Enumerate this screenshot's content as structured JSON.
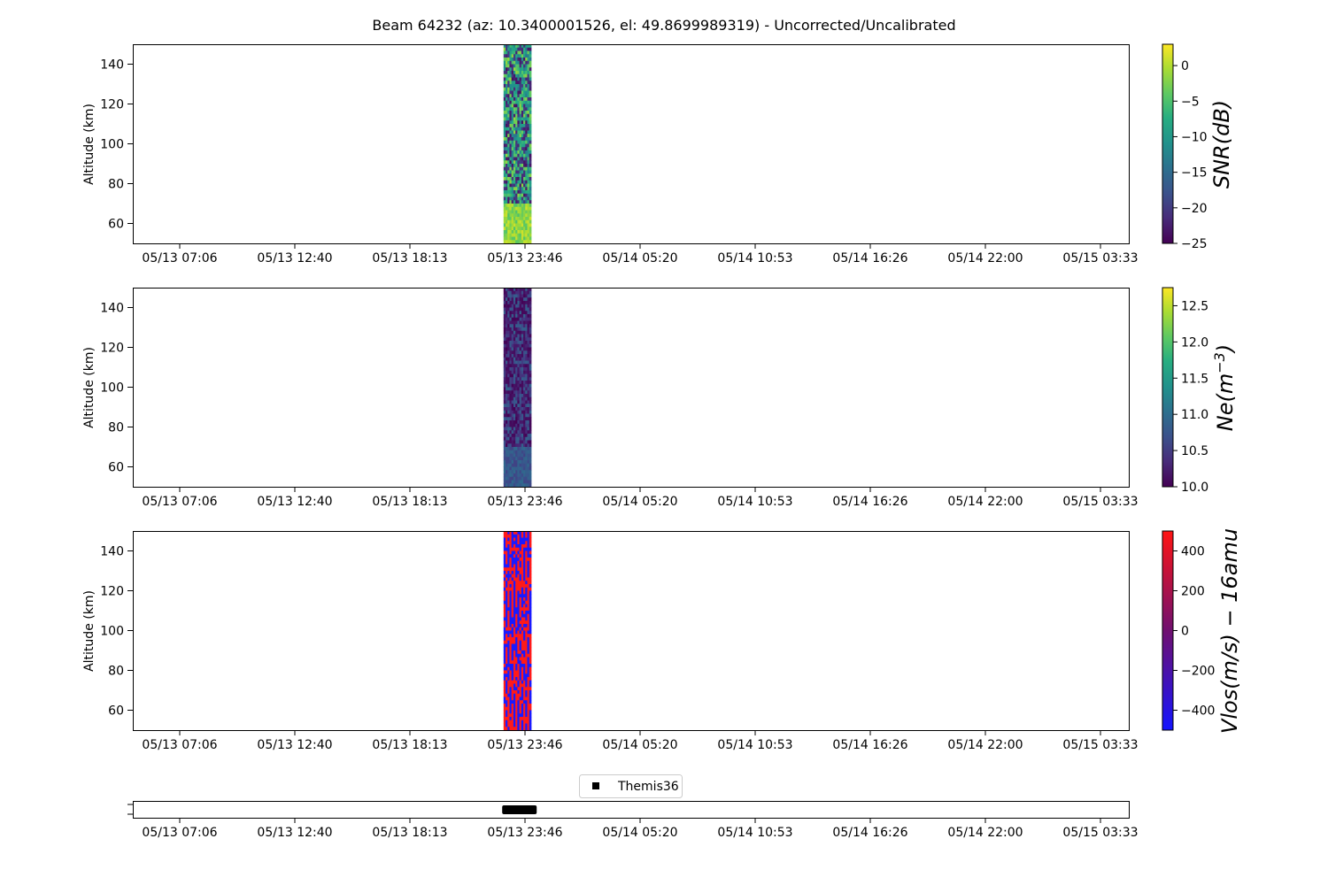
{
  "title": "Beam 64232 (az: 10.3400001526, el: 49.8699989319) - Uncorrected/Uncalibrated",
  "chart_data": [
    {
      "type": "heatmap",
      "id": "snr",
      "ylabel": "Altitude (km)",
      "ylim": [
        50,
        150
      ],
      "yticks": [
        60,
        80,
        100,
        120,
        140
      ],
      "xticks": [
        "05/13 07:06",
        "05/13 12:40",
        "05/13 18:13",
        "05/13 23:46",
        "05/14 05:20",
        "05/14 10:53",
        "05/14 16:26",
        "05/14 22:00",
        "05/15 03:33"
      ],
      "data_window": {
        "start": "05/13 22:44",
        "end": "05/14 00:04"
      },
      "colorbar": {
        "label": "SNR(dB)",
        "colormap": "viridis",
        "range": [
          -25,
          3
        ],
        "ticks": [
          0,
          -5,
          -10,
          -15,
          -20,
          -25
        ],
        "tick_labels": [
          "0",
          "−5",
          "−10",
          "−15",
          "−20",
          "−25"
        ]
      }
    },
    {
      "type": "heatmap",
      "id": "ne",
      "ylabel": "Altitude (km)",
      "ylim": [
        50,
        150
      ],
      "yticks": [
        60,
        80,
        100,
        120,
        140
      ],
      "xticks": [
        "05/13 07:06",
        "05/13 12:40",
        "05/13 18:13",
        "05/13 23:46",
        "05/14 05:20",
        "05/14 10:53",
        "05/14 16:26",
        "05/14 22:00",
        "05/15 03:33"
      ],
      "data_window": {
        "start": "05/13 22:44",
        "end": "05/14 00:04"
      },
      "colorbar": {
        "label": "Ne(m",
        "label_sup": "−3",
        "label_suffix": ")",
        "colormap": "viridis",
        "range": [
          10.0,
          12.75
        ],
        "ticks": [
          12.5,
          12.0,
          11.5,
          11.0,
          10.5,
          10.0
        ],
        "tick_labels": [
          "12.5",
          "12.0",
          "11.5",
          "11.0",
          "10.5",
          "10.0"
        ]
      }
    },
    {
      "type": "heatmap",
      "id": "vlos",
      "ylabel": "Altitude (km)",
      "ylim": [
        50,
        150
      ],
      "yticks": [
        60,
        80,
        100,
        120,
        140
      ],
      "xticks": [
        "05/13 07:06",
        "05/13 12:40",
        "05/13 18:13",
        "05/13 23:46",
        "05/14 05:20",
        "05/14 10:53",
        "05/14 16:26",
        "05/14 22:00",
        "05/15 03:33"
      ],
      "data_window": {
        "start": "05/13 22:44",
        "end": "05/14 00:04"
      },
      "colorbar": {
        "label": "Vlos(m/s) − 16amu",
        "colormap": "bwr",
        "range": [
          -500,
          500
        ],
        "ticks": [
          400,
          200,
          0,
          -200,
          -400
        ],
        "tick_labels": [
          "400",
          "200",
          "0",
          "−200",
          "−400"
        ]
      }
    },
    {
      "type": "scatter",
      "id": "themis",
      "xticks": [
        "05/13 07:06",
        "05/13 12:40",
        "05/13 18:13",
        "05/13 23:46",
        "05/14 05:20",
        "05/14 10:53",
        "05/14 16:26",
        "05/14 22:00",
        "05/15 03:33"
      ],
      "legend": {
        "label": "Themis36",
        "placement": "top-center"
      },
      "series": [
        {
          "name": "Themis36",
          "x_start": "05/13 22:40",
          "x_end": "05/14 00:20",
          "marker": "square",
          "color": "#000000"
        }
      ]
    }
  ]
}
